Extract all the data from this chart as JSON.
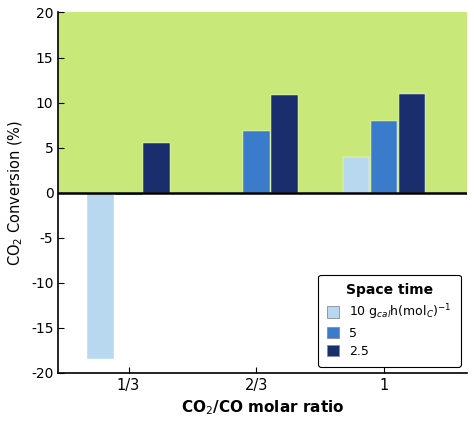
{
  "categories": [
    "1/3",
    "2/3",
    "1"
  ],
  "series": {
    "10": [
      -18.5,
      0.0,
      4.0
    ],
    "5": [
      -0.3,
      6.8,
      8.0
    ],
    "2.5": [
      5.5,
      10.8,
      11.0
    ]
  },
  "colors": {
    "10": "#b8d8f0",
    "5": "#3a7bcc",
    "2.5": "#1a2e6e"
  },
  "ylabel": "CO$_2$ Conversion (%)",
  "xlabel": "CO$_2$/CO molar ratio",
  "ylim": [
    -20,
    20
  ],
  "yticks": [
    -20,
    -15,
    -10,
    -5,
    0,
    5,
    10,
    15,
    20
  ],
  "legend_title": "Space time",
  "legend_labels": [
    "10 g$_{cal}$h(mol$_C$)$^{-1}$",
    "5",
    "2.5"
  ],
  "bg_color_positive": "#c8e87a",
  "bar_width": 0.22,
  "group_positions": [
    1.0,
    2.0,
    3.0
  ],
  "figsize": [
    4.74,
    4.24
  ],
  "dpi": 100
}
